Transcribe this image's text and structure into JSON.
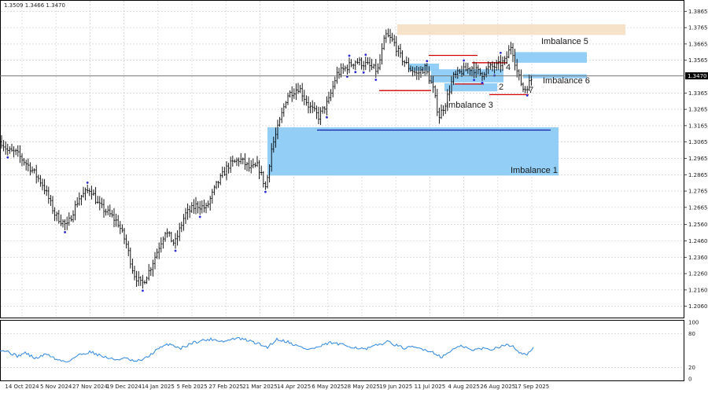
{
  "header": {
    "ohlc_readout": "1.3509 1.3466 1.3470"
  },
  "price_axis": {
    "ticks": [
      "1.3865",
      "1.3765",
      "1.3665",
      "1.3565",
      "1.3470",
      "1.3365",
      "1.3265",
      "1.3165",
      "1.3065",
      "1.2965",
      "1.2865",
      "1.2765",
      "1.2665",
      "1.2560",
      "1.2460",
      "1.2360",
      "1.2260",
      "1.2160",
      "1.2060"
    ],
    "current_price": "1.3470"
  },
  "time_axis": {
    "labels": [
      "14 Oct 2024",
      "5 Nov 2024",
      "27 Nov 2024",
      "19 Dec 2024",
      "14 Jan 2025",
      "5 Feb 2025",
      "27 Feb 2025",
      "21 Mar 2025",
      "14 Apr 2025",
      "6 May 2025",
      "28 May 2025",
      "19 Jun 2025",
      "11 Jul 2025",
      "4 Aug 2025",
      "26 Aug 2025",
      "17 Sep 2025"
    ]
  },
  "indicator_axis": {
    "ticks": [
      "100",
      "80",
      "20",
      "0"
    ]
  },
  "annotations": {
    "imbalance_1": "Imbalance 1",
    "imbalance_3": "Imbalance 3",
    "imbalance_5": "Imbalance 5",
    "imbalance_6": "Imbalance 6",
    "label_2": "2",
    "label_4": "4",
    "label_7": "7"
  },
  "colors": {
    "bars": "#000000",
    "fractal": "#2b2bd6",
    "imbalance_zone": "#8ccbf5",
    "supply_zone": "#f5dcc0",
    "red_level": "#d40000",
    "blue_level": "#1a1aa8",
    "oscillator": "#3d8fe0",
    "grid": "#c8c8c8"
  },
  "chart_data": {
    "type": "ohlc",
    "symbol_timeframe": "daily",
    "y_range": [
      1.202,
      1.3905
    ],
    "indicator_range": [
      0,
      100
    ],
    "indicator_levels": [
      20,
      80
    ],
    "grid": true,
    "close_path_keypoints": [
      [
        0,
        1.308
      ],
      [
        10,
        1.301
      ],
      [
        20,
        1.3
      ],
      [
        30,
        1.295
      ],
      [
        40,
        1.29
      ],
      [
        55,
        1.28
      ],
      [
        70,
        1.262
      ],
      [
        85,
        1.255
      ],
      [
        100,
        1.272
      ],
      [
        115,
        1.278
      ],
      [
        125,
        1.268
      ],
      [
        140,
        1.262
      ],
      [
        150,
        1.257
      ],
      [
        160,
        1.245
      ],
      [
        170,
        1.226
      ],
      [
        180,
        1.219
      ],
      [
        190,
        1.228
      ],
      [
        200,
        1.24
      ],
      [
        210,
        1.252
      ],
      [
        222,
        1.244
      ],
      [
        235,
        1.262
      ],
      [
        250,
        1.268
      ],
      [
        262,
        1.266
      ],
      [
        275,
        1.28
      ],
      [
        290,
        1.292
      ],
      [
        305,
        1.296
      ],
      [
        318,
        1.29
      ],
      [
        328,
        1.292
      ],
      [
        338,
        1.278
      ],
      [
        345,
        1.302
      ],
      [
        355,
        1.318
      ],
      [
        365,
        1.335
      ],
      [
        380,
        1.34
      ],
      [
        392,
        1.329
      ],
      [
        405,
        1.322
      ],
      [
        418,
        1.332
      ],
      [
        428,
        1.348
      ],
      [
        440,
        1.352
      ],
      [
        452,
        1.356
      ],
      [
        465,
        1.354
      ],
      [
        480,
        1.35
      ],
      [
        490,
        1.372
      ],
      [
        500,
        1.368
      ],
      [
        510,
        1.358
      ],
      [
        520,
        1.352
      ],
      [
        530,
        1.348
      ],
      [
        540,
        1.352
      ],
      [
        550,
        1.34
      ],
      [
        558,
        1.322
      ],
      [
        566,
        1.33
      ],
      [
        576,
        1.346
      ],
      [
        588,
        1.35
      ],
      [
        600,
        1.352
      ],
      [
        612,
        1.348
      ],
      [
        622,
        1.352
      ],
      [
        632,
        1.353
      ],
      [
        642,
        1.356
      ],
      [
        650,
        1.366
      ],
      [
        658,
        1.348
      ],
      [
        666,
        1.338
      ],
      [
        672,
        1.342
      ],
      [
        678,
        1.347
      ]
    ],
    "oscillator_keypoints": [
      [
        0,
        52
      ],
      [
        10,
        48
      ],
      [
        22,
        40
      ],
      [
        32,
        46
      ],
      [
        45,
        36
      ],
      [
        60,
        44
      ],
      [
        72,
        34
      ],
      [
        85,
        30
      ],
      [
        100,
        42
      ],
      [
        115,
        48
      ],
      [
        130,
        40
      ],
      [
        145,
        34
      ],
      [
        160,
        36
      ],
      [
        172,
        30
      ],
      [
        185,
        36
      ],
      [
        200,
        52
      ],
      [
        215,
        62
      ],
      [
        230,
        54
      ],
      [
        245,
        64
      ],
      [
        258,
        68
      ],
      [
        270,
        70
      ],
      [
        285,
        66
      ],
      [
        300,
        72
      ],
      [
        315,
        68
      ],
      [
        328,
        62
      ],
      [
        340,
        56
      ],
      [
        352,
        70
      ],
      [
        365,
        66
      ],
      [
        378,
        58
      ],
      [
        392,
        52
      ],
      [
        405,
        56
      ],
      [
        420,
        64
      ],
      [
        435,
        60
      ],
      [
        450,
        56
      ],
      [
        465,
        52
      ],
      [
        480,
        60
      ],
      [
        495,
        66
      ],
      [
        505,
        58
      ],
      [
        515,
        54
      ],
      [
        525,
        56
      ],
      [
        540,
        52
      ],
      [
        552,
        46
      ],
      [
        562,
        38
      ],
      [
        575,
        52
      ],
      [
        588,
        58
      ],
      [
        600,
        50
      ],
      [
        612,
        54
      ],
      [
        625,
        52
      ],
      [
        640,
        60
      ],
      [
        652,
        58
      ],
      [
        660,
        48
      ],
      [
        668,
        42
      ],
      [
        675,
        50
      ],
      [
        678,
        54
      ]
    ],
    "zones": [
      {
        "name": "Imbalance 1",
        "top": 1.3155,
        "bottom": 1.286,
        "x_start": 340,
        "x_end": 710,
        "color_key": "imbalance_zone"
      },
      {
        "name": "Imbalance 5",
        "top": 1.3615,
        "bottom": 1.355,
        "x_start": 655,
        "x_end": 746,
        "color_key": "imbalance_zone"
      },
      {
        "name": "Imbalance 6",
        "top": 1.348,
        "bottom": 1.3455,
        "x_start": 665,
        "x_end": 746,
        "color_key": "imbalance_zone"
      },
      {
        "name": "supply",
        "top": 1.3785,
        "bottom": 1.372,
        "x_start": 505,
        "x_end": 795,
        "color_key": "supply_zone"
      },
      {
        "name": "Imbalance 3 area a",
        "top": 1.3545,
        "bottom": 1.35,
        "x_start": 520,
        "x_end": 558,
        "color_key": "imbalance_zone"
      },
      {
        "name": "Imbalance 3 area b",
        "top": 1.351,
        "bottom": 1.343,
        "x_start": 548,
        "x_end": 640,
        "color_key": "imbalance_zone"
      },
      {
        "name": "Imbalance 3 area c",
        "top": 1.3425,
        "bottom": 1.3375,
        "x_start": 565,
        "x_end": 632,
        "color_key": "imbalance_zone"
      }
    ],
    "levels": [
      {
        "price": 1.3595,
        "x_start": 545,
        "x_end": 607,
        "color_key": "red_level"
      },
      {
        "price": 1.355,
        "x_start": 600,
        "x_end": 645,
        "color_key": "red_level"
      },
      {
        "price": 1.338,
        "x_start": 482,
        "x_end": 548,
        "color_key": "red_level"
      },
      {
        "price": 1.342,
        "x_start": 578,
        "x_end": 615,
        "color_key": "red_level"
      },
      {
        "price": 1.3355,
        "x_start": 622,
        "x_end": 672,
        "color_key": "red_level"
      },
      {
        "price": 1.3138,
        "x_start": 403,
        "x_end": 700,
        "color_key": "blue_level"
      }
    ],
    "current_price_line": 1.347
  }
}
